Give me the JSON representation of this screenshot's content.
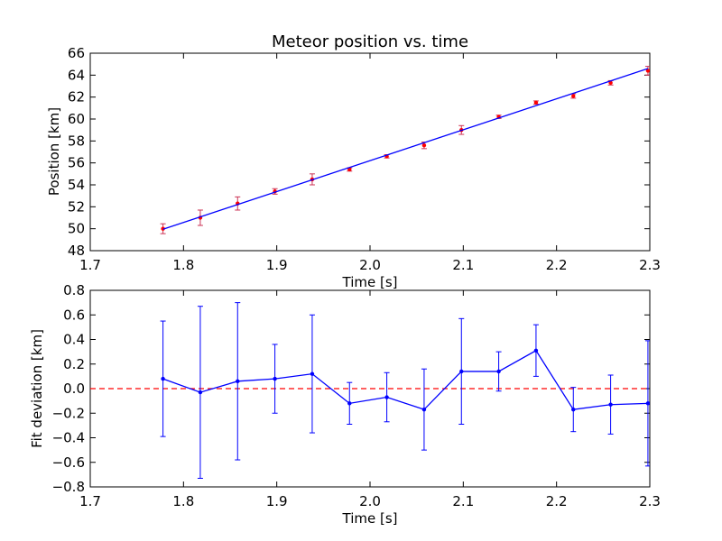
{
  "chart_data": [
    {
      "type": "scatter",
      "title": "Meteor position vs. time",
      "xlabel": "Time [s]",
      "ylabel": "Position [km]",
      "xlim": [
        1.7,
        2.3
      ],
      "ylim": [
        48,
        66
      ],
      "xticks": [
        "1.7",
        "1.8",
        "1.9",
        "2.0",
        "2.1",
        "2.2",
        "2.3"
      ],
      "yticks": [
        "48",
        "50",
        "52",
        "54",
        "56",
        "58",
        "60",
        "62",
        "64",
        "66"
      ],
      "grid": false,
      "series": [
        {
          "kind": "errorbar-points",
          "color": "#ff0000",
          "errcolor": "#cc3355",
          "x": [
            1.778,
            1.818,
            1.858,
            1.898,
            1.938,
            1.978,
            2.018,
            2.058,
            2.098,
            2.138,
            2.178,
            2.218,
            2.258,
            2.298
          ],
          "y": [
            50.0,
            51.0,
            52.3,
            53.4,
            54.5,
            55.4,
            56.6,
            57.6,
            59.0,
            60.2,
            61.5,
            62.1,
            63.3,
            64.4
          ],
          "err": [
            0.45,
            0.7,
            0.6,
            0.25,
            0.5,
            0.15,
            0.15,
            0.3,
            0.4,
            0.15,
            0.15,
            0.2,
            0.2,
            0.4
          ]
        },
        {
          "kind": "line",
          "color": "#0000ff",
          "x": [
            1.778,
            2.298
          ],
          "y": [
            49.95,
            64.6
          ]
        }
      ]
    },
    {
      "type": "line",
      "title": "",
      "xlabel": "Time [s]",
      "ylabel": "Fit deviation [km]",
      "xlim": [
        1.7,
        2.3
      ],
      "ylim": [
        -0.8,
        0.8
      ],
      "xticks": [
        "1.7",
        "1.8",
        "1.9",
        "2.0",
        "2.1",
        "2.2",
        "2.3"
      ],
      "yticks": [
        "−0.8",
        "−0.6",
        "−0.4",
        "−0.2",
        "0.0",
        "0.2",
        "0.4",
        "0.6",
        "0.8"
      ],
      "grid": false,
      "reference_line": {
        "y": 0.0,
        "color": "#ff0000",
        "style": "dashed"
      },
      "series": [
        {
          "kind": "errorbar-line",
          "color": "#0000ff",
          "x": [
            1.778,
            1.818,
            1.858,
            1.898,
            1.938,
            1.978,
            2.018,
            2.058,
            2.098,
            2.138,
            2.178,
            2.218,
            2.258,
            2.298
          ],
          "y": [
            0.08,
            -0.03,
            0.06,
            0.08,
            0.12,
            -0.12,
            -0.07,
            -0.17,
            0.14,
            0.14,
            0.31,
            -0.17,
            -0.13,
            -0.12
          ],
          "err": [
            0.47,
            0.7,
            0.64,
            0.28,
            0.48,
            0.17,
            0.2,
            0.33,
            0.43,
            0.16,
            0.21,
            0.18,
            0.24,
            0.51
          ]
        }
      ]
    }
  ]
}
